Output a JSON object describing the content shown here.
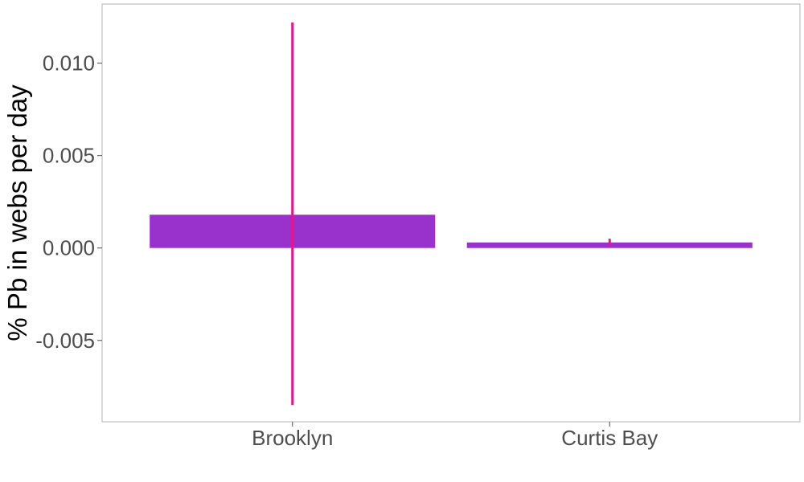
{
  "chart_data": {
    "type": "bar",
    "categories": [
      "Brooklyn",
      "Curtis Bay"
    ],
    "values": [
      0.0018,
      0.0003
    ],
    "error_bars": [
      {
        "low": -0.0085,
        "high": 0.0122
      },
      {
        "low": 0.0001,
        "high": 0.0005
      }
    ],
    "title": "",
    "xlabel": "",
    "ylabel": "% Pb in webs per day",
    "ylim": [
      -0.0094,
      0.0132
    ],
    "yticks": [
      {
        "value": -0.005,
        "label": "-0.005"
      },
      {
        "value": 0.0,
        "label": "0.000"
      },
      {
        "value": 0.005,
        "label": "0.005"
      },
      {
        "value": 0.01,
        "label": "0.010"
      }
    ],
    "grid": false,
    "legend": "none",
    "colors": {
      "bar": "#9932cc",
      "error_bar": "#ee1289",
      "panel_border": "#b3b3b3",
      "tick": "#4d4d4d"
    }
  }
}
